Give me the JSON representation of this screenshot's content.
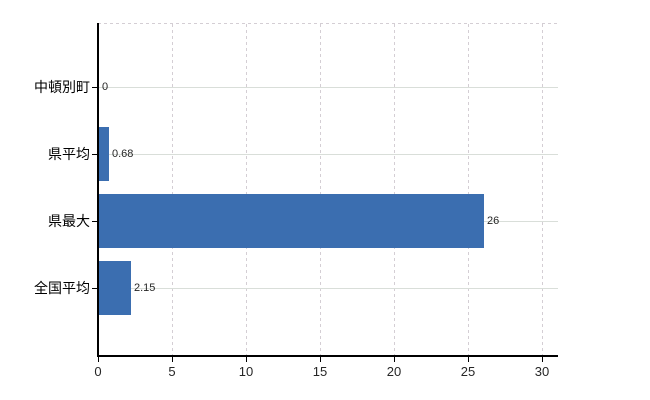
{
  "chart_data": {
    "type": "bar",
    "orientation": "horizontal",
    "title": "",
    "categories": [
      "中頓別町",
      "県平均",
      "県最大",
      "全国平均"
    ],
    "values": [
      0,
      0.68,
      26,
      2.15
    ],
    "value_labels": [
      "0",
      "0.68",
      "26",
      "2.15"
    ],
    "x_ticks": [
      0,
      5,
      10,
      15,
      20,
      25,
      30
    ],
    "xlim": [
      0,
      31.1
    ],
    "grid": true,
    "legend_position": "none",
    "bar_color": "#3b6eb0",
    "axis_color": "#000000",
    "gridline_dashed_color": "#d4ced4",
    "gridline_solid_color": "#d9ded9",
    "category_label_color": "#000000",
    "value_label_color": "#262626"
  }
}
